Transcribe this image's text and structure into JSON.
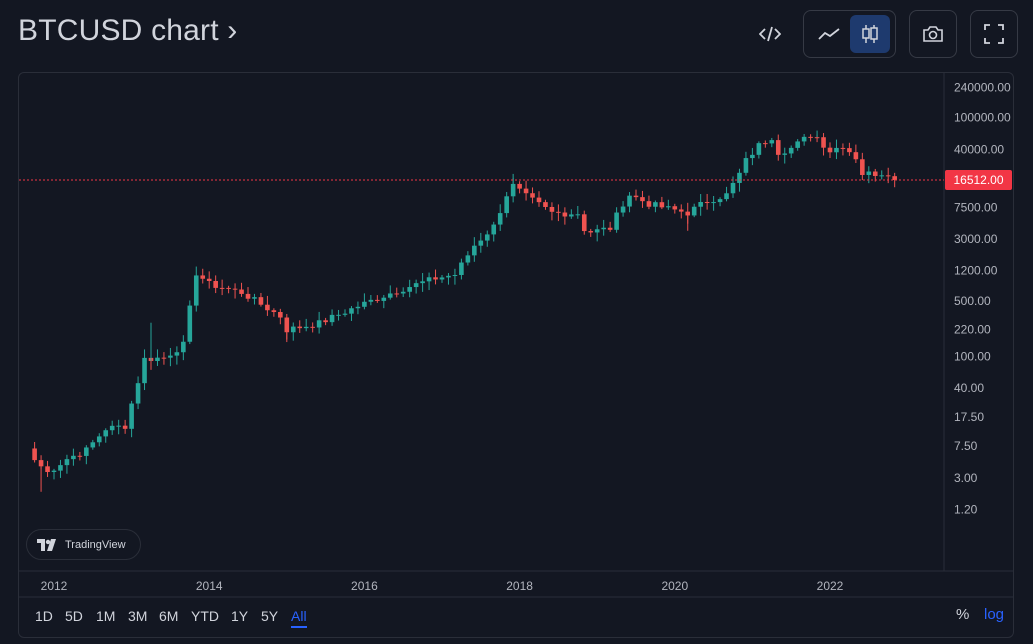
{
  "header": {
    "title": "BTCUSD chart ›",
    "icons": [
      "embed-code-icon",
      "line-chart-icon",
      "candles-icon",
      "camera-icon",
      "fullscreen-icon"
    ]
  },
  "timeframes": [
    "1D",
    "5D",
    "1M",
    "3M",
    "6M",
    "YTD",
    "1Y",
    "5Y",
    "All"
  ],
  "active_timeframe": "All",
  "scale_buttons": {
    "percent": "%",
    "log": "log",
    "active": "log"
  },
  "watermark": "TradingView",
  "colors": {
    "up": "#26a69a",
    "down": "#ef5350",
    "accent": "#2962ff",
    "last_price": "#f23645"
  },
  "chart_data": {
    "type": "candlestick",
    "symbol": "BTCUSD",
    "y_scale": "log",
    "last_price": "16512.00",
    "y_ticks": [
      "240000.00",
      "100000.00",
      "40000.00",
      "16512.00",
      "7500.00",
      "3000.00",
      "1200.00",
      "500.00",
      "220.00",
      "100.00",
      "40.00",
      "17.50",
      "7.50",
      "3.00",
      "1.20"
    ],
    "x_ticks": [
      "2012",
      "2014",
      "2016",
      "2018",
      "2020",
      "2022"
    ],
    "grid": false,
    "anchors": [
      [
        "2011-10",
        5.0
      ],
      [
        "2011-12",
        3.5
      ],
      [
        "2012-03",
        5.2
      ],
      [
        "2012-06",
        6.7
      ],
      [
        "2012-09",
        12.4
      ],
      [
        "2012-12",
        13.5
      ],
      [
        "2013-03",
        93
      ],
      [
        "2013-06",
        97
      ],
      [
        "2013-09",
        141
      ],
      [
        "2013-11",
        1130
      ],
      [
        "2014-01",
        815
      ],
      [
        "2014-06",
        640
      ],
      [
        "2014-12",
        320
      ],
      [
        "2015-01",
        217
      ],
      [
        "2015-06",
        263
      ],
      [
        "2015-12",
        430
      ],
      [
        "2016-06",
        675
      ],
      [
        "2016-12",
        963
      ],
      [
        "2017-03",
        1071
      ],
      [
        "2017-06",
        2500
      ],
      [
        "2017-09",
        4340
      ],
      [
        "2017-11",
        10800
      ],
      [
        "2017-12",
        14000
      ],
      [
        "2018-02",
        10300
      ],
      [
        "2018-06",
        6400
      ],
      [
        "2018-10",
        6300
      ],
      [
        "2018-11",
        4000
      ],
      [
        "2018-12",
        3700
      ],
      [
        "2019-03",
        4100
      ],
      [
        "2019-05",
        8500
      ],
      [
        "2019-06",
        10800
      ],
      [
        "2019-09",
        8300
      ],
      [
        "2019-12",
        7200
      ],
      [
        "2020-03",
        6400
      ],
      [
        "2020-06",
        9100
      ],
      [
        "2020-09",
        10800
      ],
      [
        "2020-11",
        19700
      ],
      [
        "2020-12",
        29000
      ],
      [
        "2021-02",
        45000
      ],
      [
        "2021-04",
        57700
      ],
      [
        "2021-05",
        37300
      ],
      [
        "2021-07",
        41500
      ],
      [
        "2021-10",
        61300
      ],
      [
        "2021-11",
        57000
      ],
      [
        "2021-12",
        46200
      ],
      [
        "2022-01",
        38500
      ],
      [
        "2022-03",
        45500
      ],
      [
        "2022-05",
        31800
      ],
      [
        "2022-06",
        19900
      ],
      [
        "2022-08",
        20000
      ],
      [
        "2022-10",
        20500
      ],
      [
        "2022-11",
        16512
      ]
    ],
    "markers": [
      [
        "2013-04",
        266
      ],
      [
        "2015-01",
        152
      ],
      [
        "2020-03",
        3800
      ],
      [
        "2017-12",
        19700
      ],
      [
        "2021-11",
        69000
      ],
      [
        "2011-11",
        2
      ]
    ]
  }
}
